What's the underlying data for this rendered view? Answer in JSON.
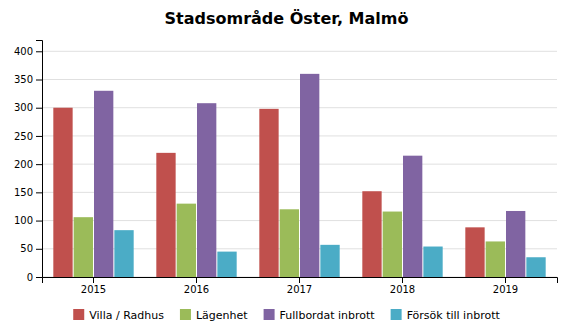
{
  "chart_data": {
    "type": "bar",
    "title": "Stadsområde Öster, Malmö",
    "categories": [
      "2015",
      "2016",
      "2017",
      "2018",
      "2019"
    ],
    "series": [
      {
        "name": "Villa / Radhus",
        "color": "#c0504d",
        "values": [
          300,
          220,
          298,
          152,
          88
        ]
      },
      {
        "name": "Lägenhet",
        "color": "#9bbb59",
        "values": [
          106,
          130,
          120,
          116,
          63
        ]
      },
      {
        "name": "Fullbordat inbrott",
        "color": "#8064a2",
        "values": [
          330,
          308,
          360,
          215,
          117
        ]
      },
      {
        "name": "Försök till inbrott",
        "color": "#4bacc6",
        "values": [
          83,
          45,
          57,
          54,
          35
        ]
      }
    ],
    "ylim": [
      0,
      420
    ],
    "yticks": [
      0,
      50,
      100,
      150,
      200,
      250,
      300,
      350,
      400
    ],
    "grid": true,
    "legend": "bottom"
  }
}
